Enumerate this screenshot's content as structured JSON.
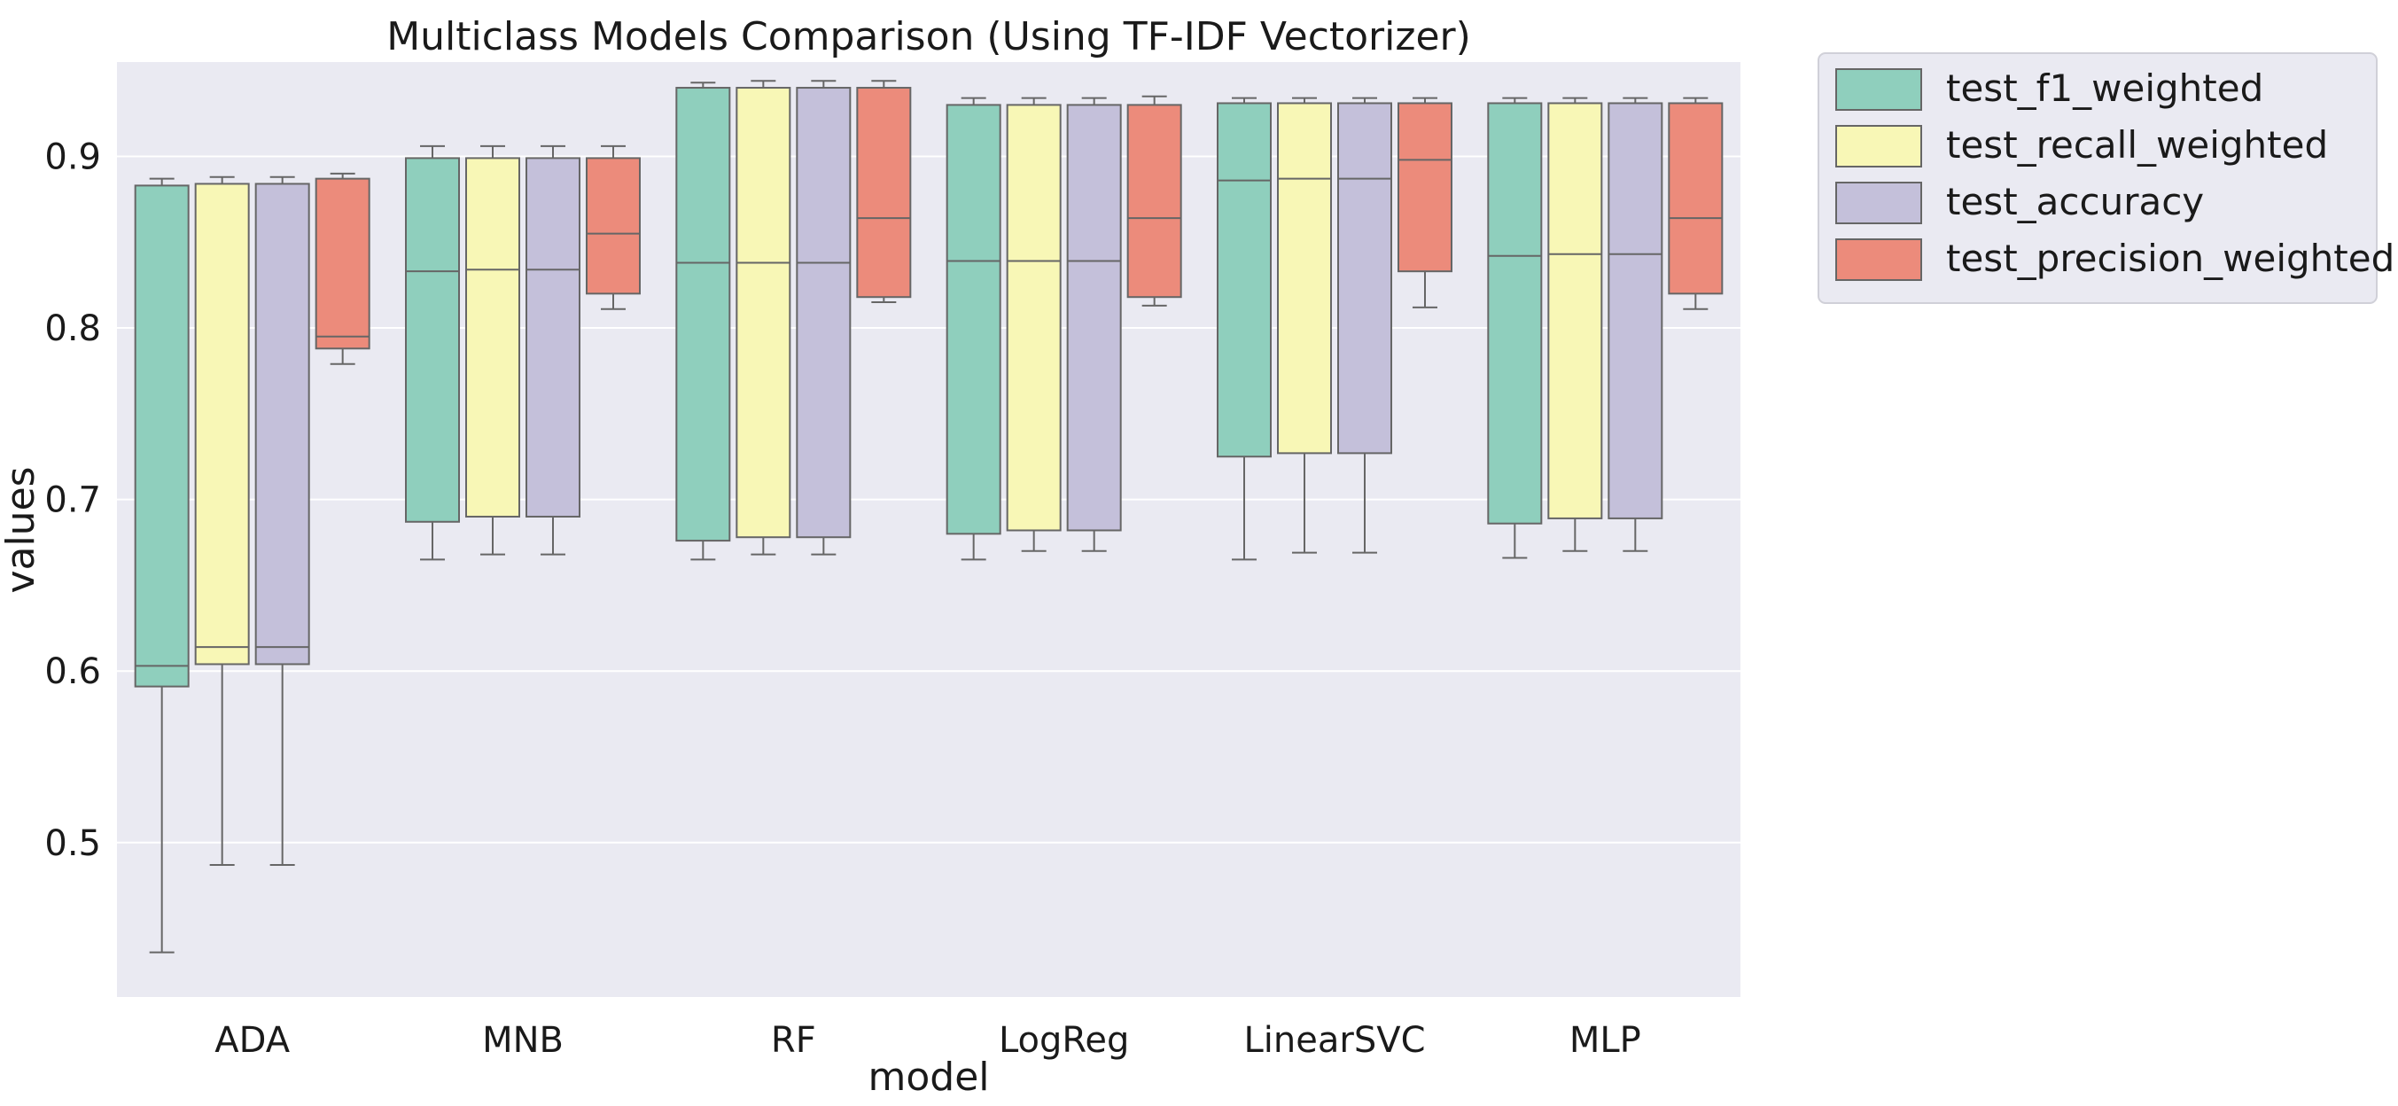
{
  "chart_data": {
    "type": "box",
    "title": "Multiclass Models Comparison (Using TF-IDF Vectorizer)",
    "xlabel": "model",
    "ylabel": "values",
    "ylim": [
      0.41,
      0.955
    ],
    "yticks": [
      0.5,
      0.6,
      0.7,
      0.8,
      0.9
    ],
    "ytick_labels": [
      "0.5",
      "0.6",
      "0.7",
      "0.8",
      "0.9"
    ],
    "grid": true,
    "legend_position": "outside-top-right",
    "categories": [
      "ADA",
      "MNB",
      "RF",
      "LogReg",
      "LinearSVC",
      "MLP"
    ],
    "series": [
      {
        "name": "test_f1_weighted",
        "color": "#8fcfbd",
        "boxes": [
          {
            "min": 0.436,
            "q1": 0.591,
            "median": 0.603,
            "q3": 0.883,
            "max": 0.887
          },
          {
            "min": 0.665,
            "q1": 0.687,
            "median": 0.833,
            "q3": 0.899,
            "max": 0.906
          },
          {
            "min": 0.665,
            "q1": 0.676,
            "median": 0.838,
            "q3": 0.94,
            "max": 0.943
          },
          {
            "min": 0.665,
            "q1": 0.68,
            "median": 0.839,
            "q3": 0.93,
            "max": 0.934
          },
          {
            "min": 0.665,
            "q1": 0.725,
            "median": 0.886,
            "q3": 0.931,
            "max": 0.934
          },
          {
            "min": 0.666,
            "q1": 0.686,
            "median": 0.842,
            "q3": 0.931,
            "max": 0.934
          }
        ]
      },
      {
        "name": "test_recall_weighted",
        "color": "#f8f7b6",
        "boxes": [
          {
            "min": 0.487,
            "q1": 0.604,
            "median": 0.614,
            "q3": 0.884,
            "max": 0.888
          },
          {
            "min": 0.668,
            "q1": 0.69,
            "median": 0.834,
            "q3": 0.899,
            "max": 0.906
          },
          {
            "min": 0.668,
            "q1": 0.678,
            "median": 0.838,
            "q3": 0.94,
            "max": 0.944
          },
          {
            "min": 0.67,
            "q1": 0.682,
            "median": 0.839,
            "q3": 0.93,
            "max": 0.934
          },
          {
            "min": 0.669,
            "q1": 0.727,
            "median": 0.887,
            "q3": 0.931,
            "max": 0.934
          },
          {
            "min": 0.67,
            "q1": 0.689,
            "median": 0.843,
            "q3": 0.931,
            "max": 0.934
          }
        ]
      },
      {
        "name": "test_accuracy",
        "color": "#c4c0da",
        "boxes": [
          {
            "min": 0.487,
            "q1": 0.604,
            "median": 0.614,
            "q3": 0.884,
            "max": 0.888
          },
          {
            "min": 0.668,
            "q1": 0.69,
            "median": 0.834,
            "q3": 0.899,
            "max": 0.906
          },
          {
            "min": 0.668,
            "q1": 0.678,
            "median": 0.838,
            "q3": 0.94,
            "max": 0.944
          },
          {
            "min": 0.67,
            "q1": 0.682,
            "median": 0.839,
            "q3": 0.93,
            "max": 0.934
          },
          {
            "min": 0.669,
            "q1": 0.727,
            "median": 0.887,
            "q3": 0.931,
            "max": 0.934
          },
          {
            "min": 0.67,
            "q1": 0.689,
            "median": 0.843,
            "q3": 0.931,
            "max": 0.934
          }
        ]
      },
      {
        "name": "test_precision_weighted",
        "color": "#ec8b7b",
        "boxes": [
          {
            "min": 0.779,
            "q1": 0.788,
            "median": 0.795,
            "q3": 0.887,
            "max": 0.89
          },
          {
            "min": 0.811,
            "q1": 0.82,
            "median": 0.855,
            "q3": 0.899,
            "max": 0.906
          },
          {
            "min": 0.815,
            "q1": 0.818,
            "median": 0.864,
            "q3": 0.94,
            "max": 0.944
          },
          {
            "min": 0.813,
            "q1": 0.818,
            "median": 0.864,
            "q3": 0.93,
            "max": 0.935
          },
          {
            "min": 0.812,
            "q1": 0.833,
            "median": 0.898,
            "q3": 0.931,
            "max": 0.934
          },
          {
            "min": 0.811,
            "q1": 0.82,
            "median": 0.864,
            "q3": 0.931,
            "max": 0.934
          }
        ]
      }
    ]
  }
}
